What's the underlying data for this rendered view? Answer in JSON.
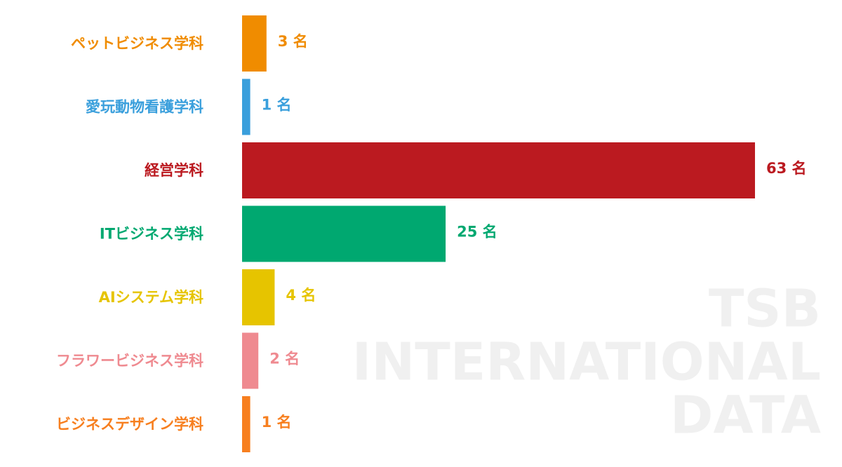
{
  "chart_data": {
    "type": "bar",
    "orientation": "horizontal",
    "categories": [
      "ペットビジネス学科",
      "愛玩動物看護学科",
      "経営学科",
      "ITビジネス学科",
      "AIシステム学科",
      "フラワービジネス学科",
      "ビジネスデザイン学科"
    ],
    "values": [
      3,
      1,
      63,
      25,
      4,
      2,
      1
    ],
    "value_labels": [
      "3 名",
      "1 名",
      "63 名",
      "25 名",
      "4 名",
      "2 名",
      "1 名"
    ],
    "colors": [
      "#f08c00",
      "#3a9fdc",
      "#bb1a20",
      "#00a870",
      "#e6c400",
      "#ef8a90",
      "#f77f1f"
    ],
    "watermark": [
      "TSB",
      "INTERNATIONAL",
      "DATA"
    ]
  }
}
